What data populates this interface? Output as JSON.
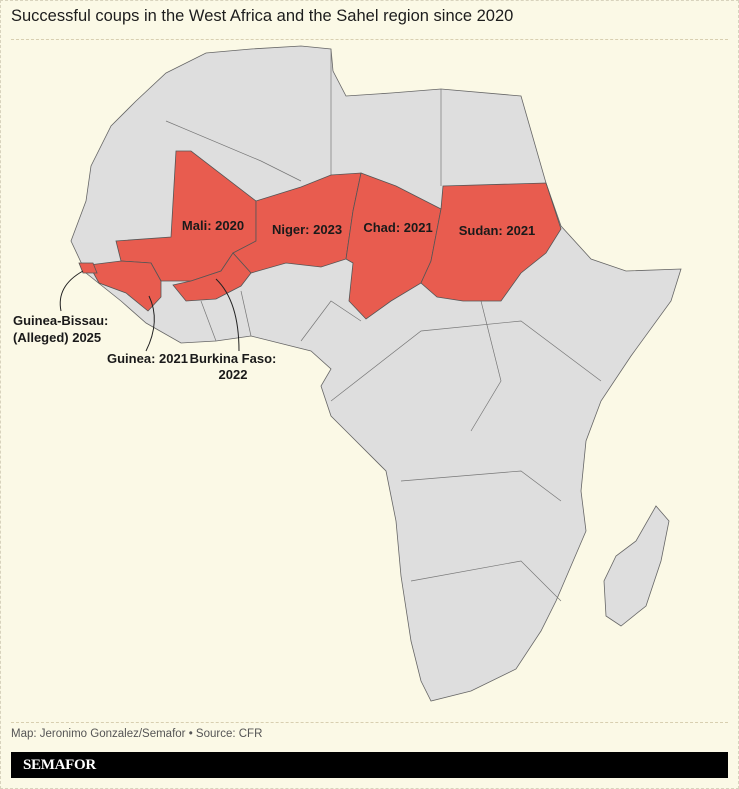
{
  "title": "Successful coups in the West Africa and the Sahel region since 2020",
  "colors": {
    "coup": "#e85c4f",
    "land": "#dedede",
    "border": "#555555",
    "background": "#fbf9e6"
  },
  "labels": {
    "mali": "Mali: 2020",
    "niger": "Niger: 2023",
    "chad": "Chad: 2021",
    "sudan": "Sudan: 2021",
    "guinea_bissau_1": "Guinea-Bissau:",
    "guinea_bissau_2": "(Alleged) 2025",
    "guinea": "Guinea: 2021",
    "burkina_1": "Burkina Faso:",
    "burkina_2": "2022"
  },
  "credit": "Map: Jeronimo Gonzalez/Semafor • Source: CFR",
  "brand": "SEMAFOR"
}
